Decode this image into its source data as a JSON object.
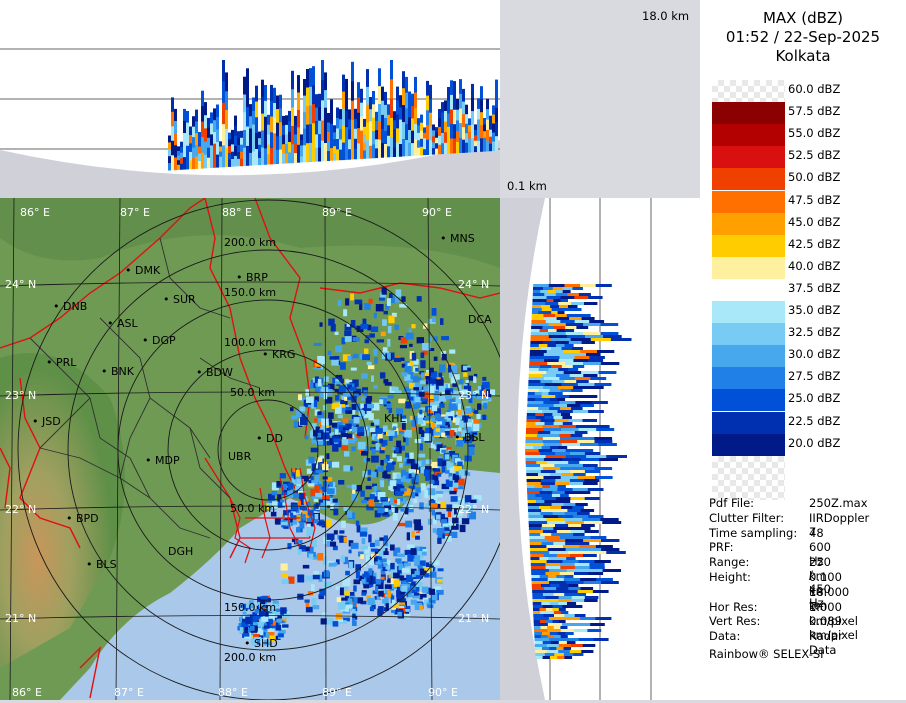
{
  "header": {
    "height_top_label": "18.0 km",
    "height_bottom_label": "0.1 km"
  },
  "legend": {
    "title": "MAX (dBZ)",
    "datetime": "01:52 / 22-Sep-2025",
    "station": "Kolkata",
    "scale": [
      {
        "label": "60.0 dBZ",
        "color": "#f2f2f2"
      },
      {
        "label": "57.5 dBZ",
        "color": "#8b0000"
      },
      {
        "label": "55.0 dBZ",
        "color": "#b30000"
      },
      {
        "label": "52.5 dBZ",
        "color": "#d81010"
      },
      {
        "label": "50.0 dBZ",
        "color": "#f04000"
      },
      {
        "label": "47.5 dBZ",
        "color": "#ff7000"
      },
      {
        "label": "45.0 dBZ",
        "color": "#ffa000"
      },
      {
        "label": "42.5 dBZ",
        "color": "#ffcc00"
      },
      {
        "label": "40.0 dBZ",
        "color": "#fff0a0"
      },
      {
        "label": "37.5 dBZ",
        "color": "#ffffff"
      },
      {
        "label": "35.0 dBZ",
        "color": "#a8e8f8"
      },
      {
        "label": "32.5 dBZ",
        "color": "#78ccf4"
      },
      {
        "label": "30.0 dBZ",
        "color": "#48a8ee"
      },
      {
        "label": "27.5 dBZ",
        "color": "#2080e8"
      },
      {
        "label": "25.0 dBZ",
        "color": "#0050d8"
      },
      {
        "label": "22.5 dBZ",
        "color": "#0030b0"
      },
      {
        "label": "20.0 dBZ",
        "color": "#001a88"
      }
    ]
  },
  "metadata": [
    {
      "key": "Pdf File:",
      "value": "250Z.max"
    },
    {
      "key": "Clutter Filter:",
      "value": "IIRDoppler 7"
    },
    {
      "key": "Time sampling:",
      "value": "48"
    },
    {
      "key": "PRF:",
      "value": "600 Hz / 450 Hz"
    },
    {
      "key": "Range:",
      "value": "250 km"
    },
    {
      "key": "Height:",
      "value": "0.100 km to"
    },
    {
      "key": "",
      "value": "18.000 km"
    },
    {
      "key": "Hor Res:",
      "value": "1.000 km/pixel"
    },
    {
      "key": "Vert Res:",
      "value": "0.089 km/pixel"
    },
    {
      "key": "Data:",
      "value": "Radar Data"
    }
  ],
  "footer": "Rainbow® SELEX-SI",
  "map": {
    "longitudes": [
      "86° E",
      "87° E",
      "88° E",
      "89° E",
      "90° E"
    ],
    "latitudes": [
      "24° N",
      "23° N",
      "22° N",
      "21° N"
    ],
    "range_rings_north": [
      "200.0 km",
      "150.0 km",
      "100.0 km",
      "50.0 km"
    ],
    "range_rings_south": [
      "50.0 km",
      "150.0 km",
      "200.0 km"
    ],
    "stations": [
      "MNS",
      "DMK",
      "BRP",
      "SUR",
      "DNB",
      "ASL",
      "DGP",
      "DCA",
      "KRG",
      "PRL",
      "BNK",
      "BDW",
      "KHL",
      "JSD",
      "DD",
      "BSL",
      "UBR",
      "MDP",
      "BPD",
      "DGH",
      "BLS",
      "SHD"
    ],
    "colors": {
      "land": "#6f9a54",
      "sea": "#a9c8ea",
      "border": "#e01010"
    }
  }
}
